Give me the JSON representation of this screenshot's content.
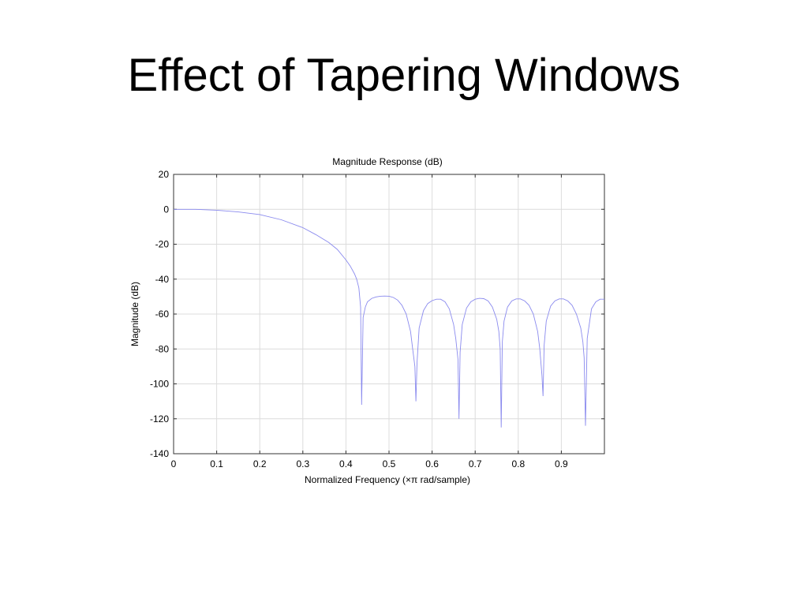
{
  "slide": {
    "title": "Effect of Tapering Windows"
  },
  "chart_data": {
    "type": "line",
    "title": "Magnitude Response (dB)",
    "xlabel": "Normalized Frequency (×π rad/sample)",
    "ylabel": "Magnitude (dB)",
    "xlim": [
      0,
      1
    ],
    "ylim": [
      -140,
      20
    ],
    "xticks": [
      0,
      0.1,
      0.2,
      0.3,
      0.4,
      0.5,
      0.6,
      0.7,
      0.8,
      0.9
    ],
    "xtick_labels": [
      "0",
      "0.1",
      "0.2",
      "0.3",
      "0.4",
      "0.5",
      "0.6",
      "0.7",
      "0.8",
      "0.9"
    ],
    "yticks": [
      20,
      0,
      -20,
      -40,
      -60,
      -80,
      -100,
      -120,
      -140
    ],
    "ytick_labels": [
      "20",
      "0",
      "-20",
      "-40",
      "-60",
      "-80",
      "-100",
      "-120",
      "-140"
    ],
    "grid": true,
    "line_color": "#8a8aee",
    "series": [
      {
        "x": [
          0,
          0.05,
          0.1,
          0.15,
          0.2,
          0.25,
          0.3,
          0.33,
          0.36,
          0.38,
          0.4,
          0.41,
          0.42,
          0.425,
          0.43,
          0.434,
          0.4365,
          0.44,
          0.445,
          0.45,
          0.46,
          0.47,
          0.48,
          0.49,
          0.5,
          0.51,
          0.52,
          0.53,
          0.54,
          0.55,
          0.555,
          0.56,
          0.5625,
          0.565,
          0.57,
          0.58,
          0.59,
          0.6,
          0.61,
          0.62,
          0.63,
          0.64,
          0.65,
          0.655,
          0.66,
          0.6625,
          0.665,
          0.67,
          0.68,
          0.69,
          0.7,
          0.71,
          0.72,
          0.73,
          0.74,
          0.75,
          0.755,
          0.758,
          0.7605,
          0.763,
          0.767,
          0.775,
          0.785,
          0.795,
          0.805,
          0.815,
          0.825,
          0.835,
          0.845,
          0.85,
          0.855,
          0.8575,
          0.86,
          0.865,
          0.875,
          0.885,
          0.895,
          0.905,
          0.915,
          0.925,
          0.935,
          0.945,
          0.95,
          0.953,
          0.956,
          0.96,
          0.97,
          0.98,
          0.99,
          1.0
        ],
        "y": [
          0,
          0,
          -0.5,
          -1.5,
          -3,
          -6,
          -10.5,
          -14.5,
          -19,
          -23,
          -29,
          -32.5,
          -37,
          -40,
          -45,
          -56,
          -112,
          -62,
          -56,
          -53,
          -51,
          -50.2,
          -49.8,
          -49.7,
          -49.8,
          -50.5,
          -52,
          -55,
          -60,
          -70,
          -80,
          -90,
          -110,
          -88,
          -68,
          -58,
          -54,
          -52.3,
          -51.5,
          -51.5,
          -53,
          -57,
          -66,
          -74,
          -86,
          -120,
          -82,
          -66,
          -56.5,
          -53,
          -51.5,
          -51,
          -51.2,
          -52.5,
          -56,
          -63,
          -70,
          -80,
          -125,
          -76,
          -64,
          -56,
          -52.5,
          -51.3,
          -51.3,
          -52.5,
          -55,
          -60,
          -70,
          -80,
          -95,
          -107,
          -78,
          -64,
          -55.5,
          -52.5,
          -51.3,
          -51.3,
          -52.5,
          -55,
          -60,
          -68,
          -76,
          -85,
          -124,
          -74,
          -57,
          -53,
          -51.5,
          -51.5
        ]
      }
    ]
  }
}
